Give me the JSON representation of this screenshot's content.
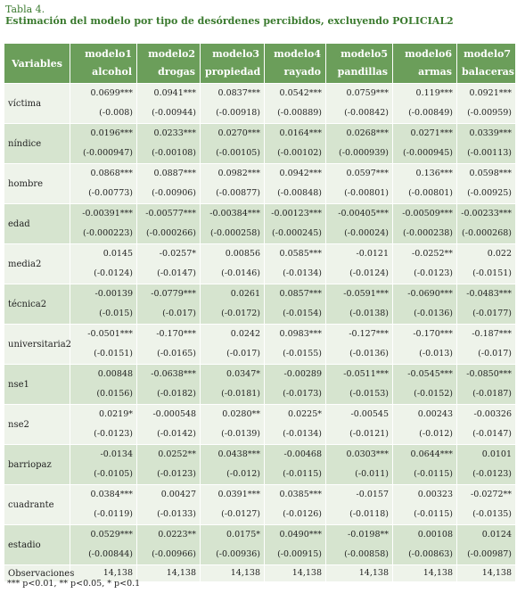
{
  "caption": {
    "label": "Tabla 4.",
    "title": "Estimación del modelo por tipo de desórdenes percibidos, excluyendo POLICIAL2"
  },
  "table": {
    "var_header": "Variables",
    "columns": [
      {
        "model": "modelo1",
        "name": "alcohol"
      },
      {
        "model": "modelo2",
        "name": "drogas"
      },
      {
        "model": "modelo3",
        "name": "propiedad"
      },
      {
        "model": "modelo4",
        "name": "rayado"
      },
      {
        "model": "modelo5",
        "name": "pandillas"
      },
      {
        "model": "modelo6",
        "name": "armas"
      },
      {
        "model": "modelo7",
        "name": "balaceras"
      }
    ],
    "rows": [
      {
        "name": "víctima",
        "coef": [
          "0.0699***",
          "0.0941***",
          "0.0837***",
          "0.0542***",
          "0.0759***",
          "0.119***",
          "0.0921***"
        ],
        "se": [
          "(-0.008)",
          "(-0.00944)",
          "(-0.00918)",
          "(-0.00889)",
          "(-0.00842)",
          "(-0.00849)",
          "(-0.00959)"
        ]
      },
      {
        "name": "níndice",
        "coef": [
          "0.0196***",
          "0.0233***",
          "0.0270***",
          "0.0164***",
          "0.0268***",
          "0.0271***",
          "0.0339***"
        ],
        "se": [
          "(-0.000947)",
          "(-0.00108)",
          "(-0.00105)",
          "(-0.00102)",
          "(-0.000939)",
          "(-0.000945)",
          "(-0.00113)"
        ]
      },
      {
        "name": "hombre",
        "coef": [
          "0.0868***",
          "0.0887***",
          "0.0982***",
          "0.0942***",
          "0.0597***",
          "0.136***",
          "0.0598***"
        ],
        "se": [
          "(-0.00773)",
          "(-0.00906)",
          "(-0.00877)",
          "(-0.00848)",
          "(-0.00801)",
          "(-0.00801)",
          "(-0.00925)"
        ]
      },
      {
        "name": "edad",
        "coef": [
          "-0.00391***",
          "-0.00577***",
          "-0.00384***",
          "-0.00123***",
          "-0.00405***",
          "-0.00509***",
          "-0.00233***"
        ],
        "se": [
          "(-0.000223)",
          "(-0.000266)",
          "(-0.000258)",
          "(-0.000245)",
          "(-0.00024)",
          "(-0.000238)",
          "(-0.000268)"
        ]
      },
      {
        "name": "media2",
        "coef": [
          "0.0145",
          "-0.0257*",
          "0.00856",
          "0.0585***",
          "-0.0121",
          "-0.0252**",
          "0.022"
        ],
        "se": [
          "(-0.0124)",
          "(-0.0147)",
          "(-0.0146)",
          "(-0.0134)",
          "(-0.0124)",
          "(-0.0123)",
          "(-0.0151)"
        ]
      },
      {
        "name": "técnica2",
        "coef": [
          "-0.00139",
          "-0.0779***",
          "0.0261",
          "0.0857***",
          "-0.0591***",
          "-0.0690***",
          "-0.0483***"
        ],
        "se": [
          "(-0.015)",
          "(-0.017)",
          "(-0.0172)",
          "(-0.0154)",
          "(-0.0138)",
          "(-0.0136)",
          "(-0.0177)"
        ]
      },
      {
        "name": "universitaria2",
        "coef": [
          "-0.0501***",
          "-0.170***",
          "0.0242",
          "0.0983***",
          "-0.127***",
          "-0.170***",
          "-0.187***"
        ],
        "se": [
          "(-0.0151)",
          "(-0.0165)",
          "(-0.017)",
          "(-0.0155)",
          "(-0.0136)",
          "(-0.013)",
          "(-0.017)"
        ]
      },
      {
        "name": "nse1",
        "coef": [
          "0.00848",
          "-0.0638***",
          "0.0347*",
          "-0.00289",
          "-0.0511***",
          "-0.0545***",
          "-0.0850***"
        ],
        "se": [
          "(0.0156)",
          "(-0.0182)",
          "(-0.0181)",
          "(-0.0173)",
          "(-0.0153)",
          "(-0.0152)",
          "(-0.0187)"
        ]
      },
      {
        "name": "nse2",
        "coef": [
          "0.0219*",
          "-0.000548",
          "0.0280**",
          "0.0225*",
          "-0.00545",
          "0.00243",
          "-0.00326"
        ],
        "se": [
          "(-0.0123)",
          "(-0.0142)",
          "(-0.0139)",
          "(-0.0134)",
          "(-0.0121)",
          "(-0.012)",
          "(-0.0147)"
        ]
      },
      {
        "name": "barriopaz",
        "coef": [
          "-0.0134",
          "0.0252**",
          "0.0438***",
          "-0.00468",
          "0.0303***",
          "0.0644***",
          "0.0101"
        ],
        "se": [
          "(-0.0105)",
          "(-0.0123)",
          "(-0.012)",
          "(-0.0115)",
          "(-0.011)",
          "(-0.0115)",
          "(-0.0123)"
        ]
      },
      {
        "name": "cuadrante",
        "coef": [
          "0.0384***",
          "0.00427",
          "0.0391***",
          "0.0385***",
          "-0.0157",
          "0.00323",
          "-0.0272**"
        ],
        "se": [
          "(-0.0119)",
          "(-0.0133)",
          "(-0.0127)",
          "(-0.0126)",
          "(-0.0118)",
          "(-0.0115)",
          "(-0.0135)"
        ]
      },
      {
        "name": "estadio",
        "coef": [
          "0.0529***",
          "0.0223**",
          "0.0175*",
          "0.0490***",
          "-0.0198**",
          "0.00108",
          "0.0124"
        ],
        "se": [
          "(-0.00844)",
          "(-0.00966)",
          "(-0.00936)",
          "(-0.00915)",
          "(-0.00858)",
          "(-0.00863)",
          "(-0.00987)"
        ]
      }
    ],
    "observations": {
      "label": "Observaciones",
      "values": [
        "14,138",
        "14,138",
        "14,138",
        "14,138",
        "14,138",
        "14,138",
        "14,138"
      ]
    }
  },
  "note": "*** p<0.01, ** p<0.05, * p<0.1"
}
